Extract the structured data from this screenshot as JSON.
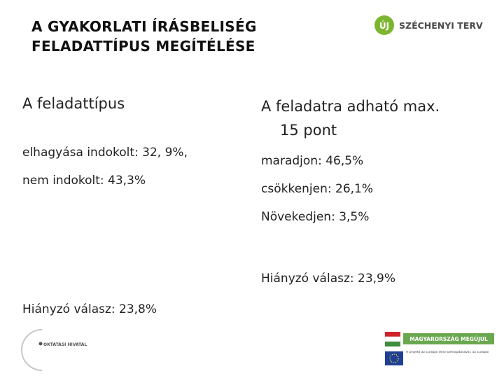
{
  "header": {
    "title_lines": [
      "A GYAKORLATI ÍRÁSBELISÉG",
      "FELADATTÍPUS MEGÍTÉLÉSE"
    ],
    "logo_badge": "ÚJ",
    "logo_text": "SZÉCHENYI TERV"
  },
  "left": {
    "heading": "A feladattípus",
    "lines": [
      "elhagyása indokolt: 32, 9%,",
      "nem indokolt: 43,3%"
    ],
    "missing": "Hiányzó válasz: 23,8%"
  },
  "right": {
    "heading_lines": [
      "A feladatra adható max.",
      "15 pont"
    ],
    "lines": [
      "maradjon: 46,5%",
      "csökkenjen: 26,1%",
      "Növekedjen: 3,5%"
    ],
    "missing": "Hiányzó válasz: 23,9%"
  },
  "footer": {
    "left_logo": "OKTATÁSI HIVATAL",
    "right_banner": "MAGYARORSZÁG MEGÚJUL",
    "eu_note": "A projekt az Európai Unió támogatásával, az Európai Szociális Alap társfinanszírozásával valósul meg."
  }
}
